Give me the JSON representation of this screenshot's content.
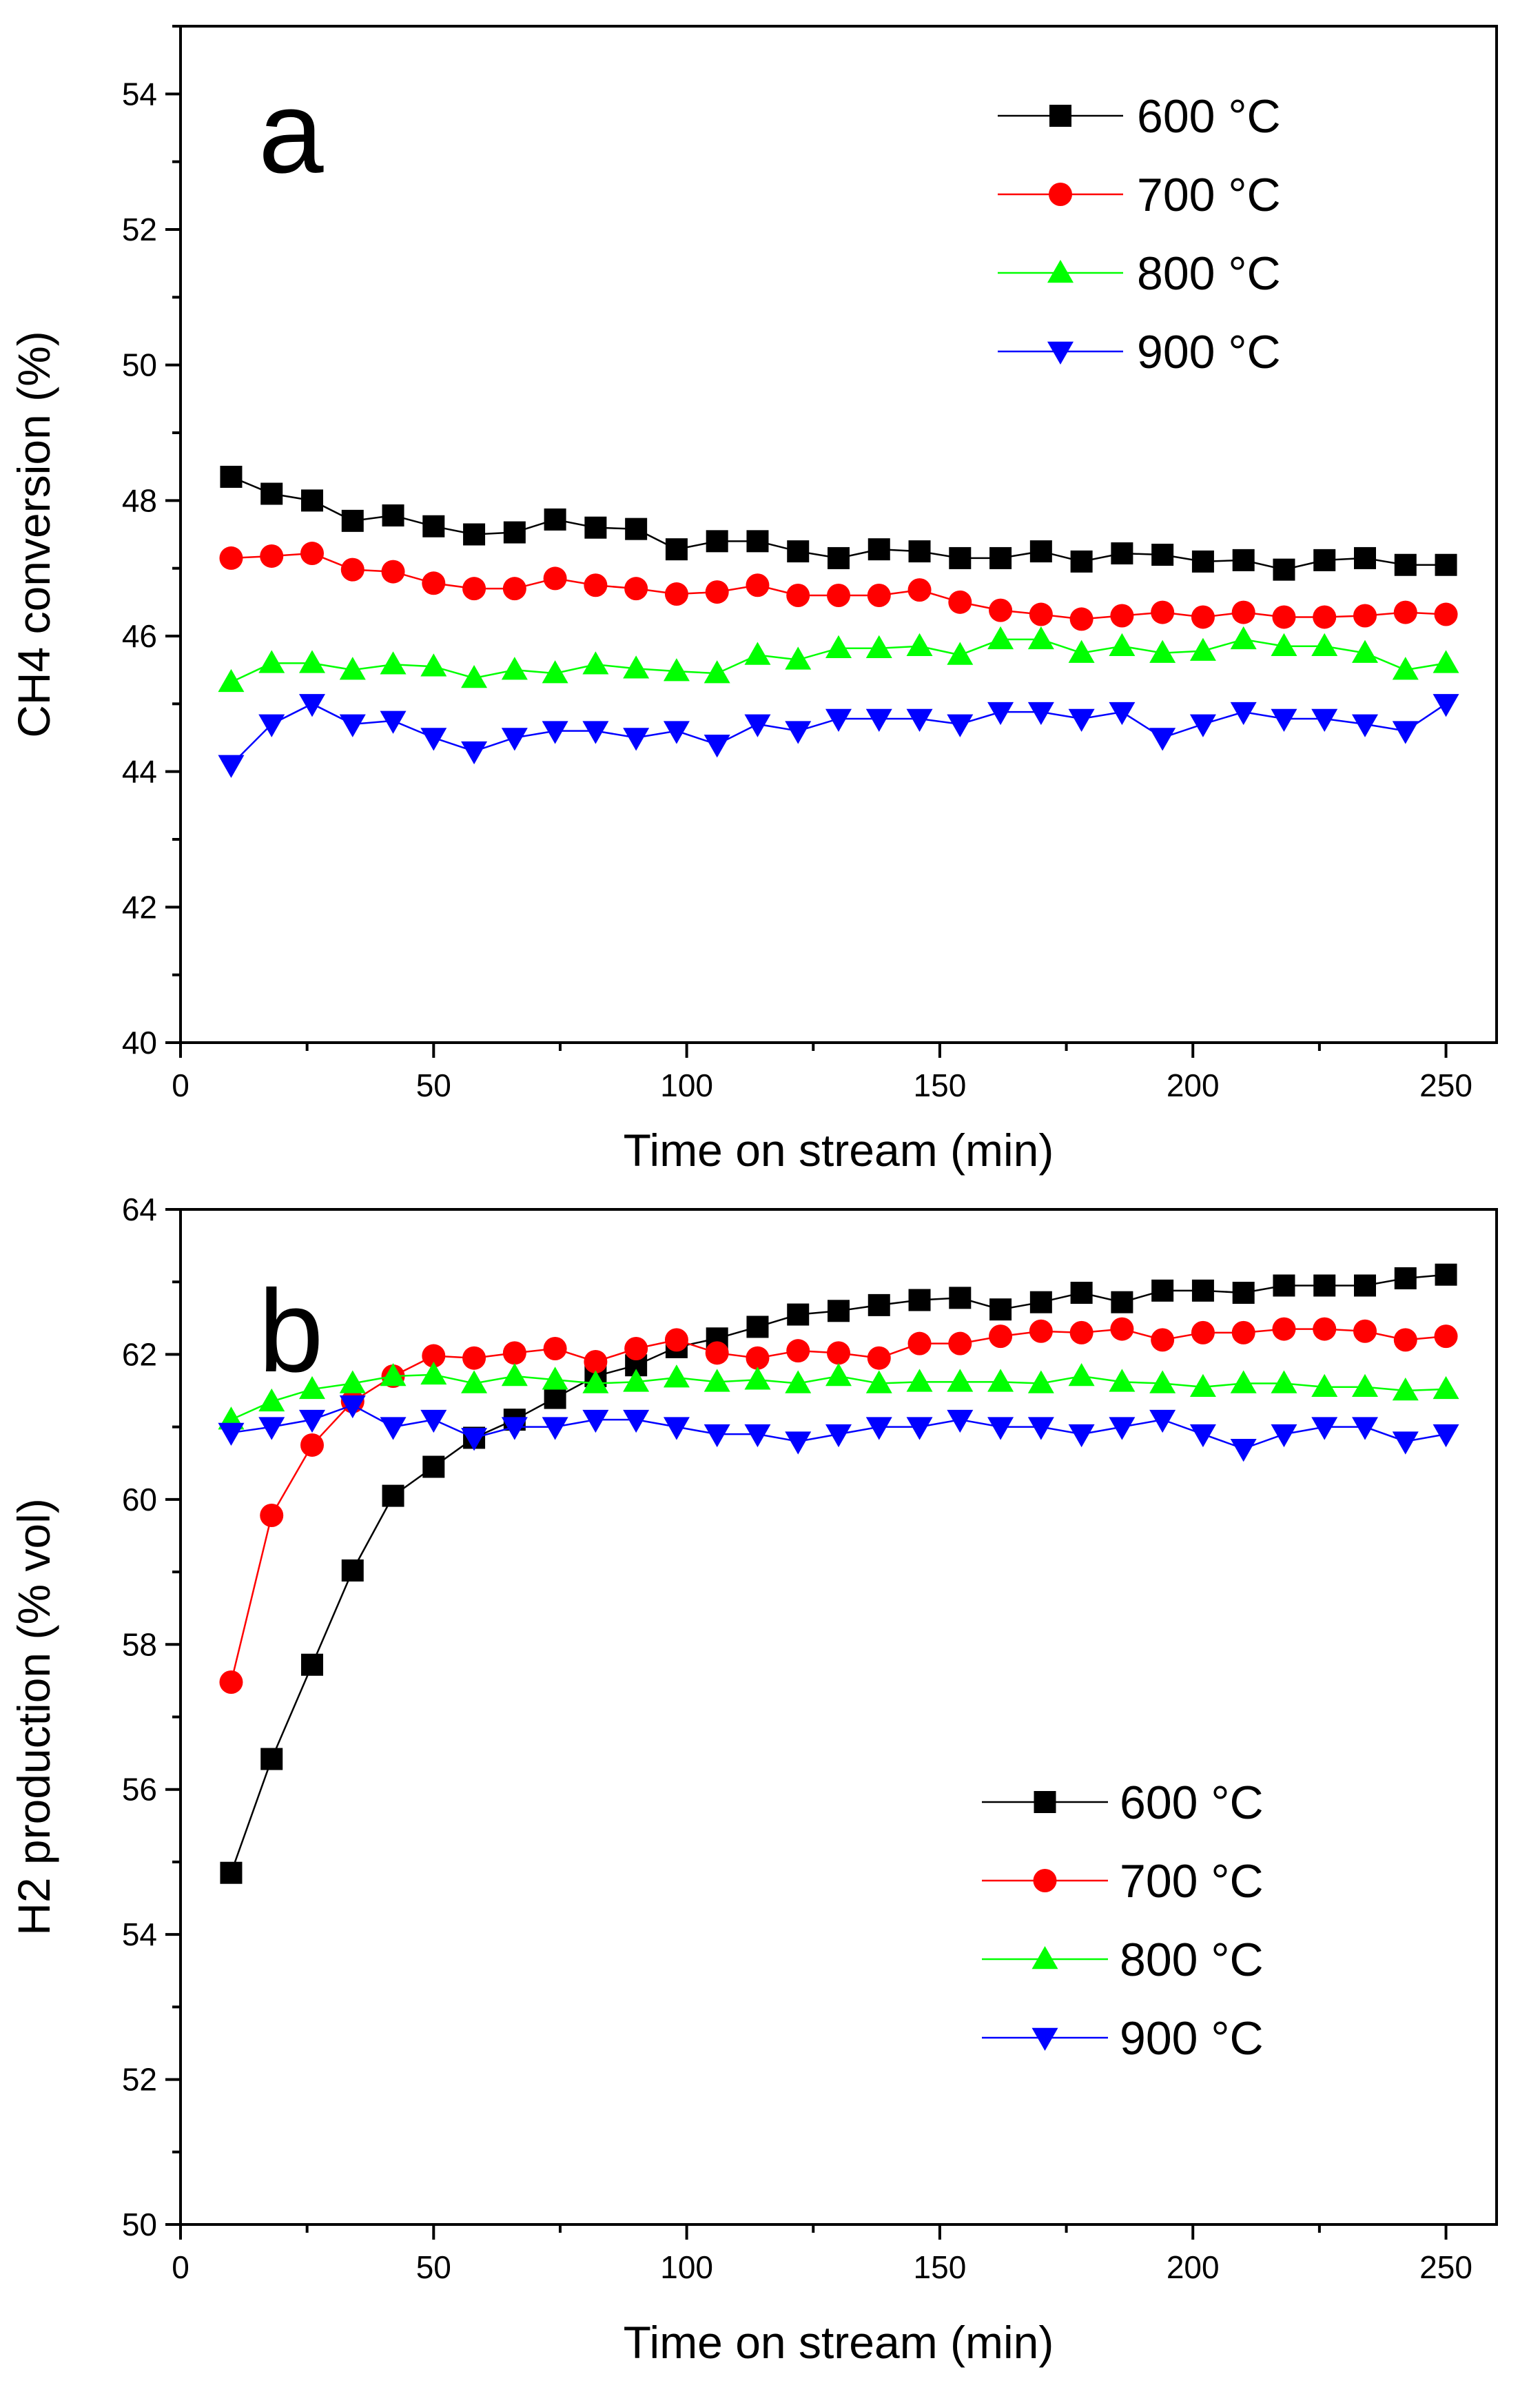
{
  "chart_data": [
    {
      "type": "line",
      "panel_label": "a",
      "xlabel": "Time on stream (min)",
      "ylabel": "CH4 conversion (%)",
      "xlim": [
        0,
        260
      ],
      "ylim": [
        40,
        55
      ],
      "xticks": [
        "0",
        "50",
        "100",
        "150",
        "200",
        "250"
      ],
      "yticks": [
        "40",
        "42",
        "44",
        "46",
        "48",
        "50",
        "52",
        "54"
      ],
      "legend_position": "top-right",
      "x": [
        10,
        18,
        26,
        34,
        42,
        50,
        58,
        66,
        74,
        82,
        90,
        98,
        106,
        114,
        122,
        130,
        138,
        146,
        154,
        162,
        170,
        178,
        186,
        194,
        202,
        210,
        218,
        226,
        234,
        242,
        250
      ],
      "series": [
        {
          "name": "600 °C",
          "color": "#000000",
          "marker": "square",
          "values": [
            48.35,
            48.1,
            48.0,
            47.7,
            47.78,
            47.62,
            47.5,
            47.53,
            47.72,
            47.6,
            47.58,
            47.28,
            47.4,
            47.4,
            47.25,
            47.15,
            47.28,
            47.25,
            47.15,
            47.15,
            47.25,
            47.1,
            47.22,
            47.2,
            47.1,
            47.12,
            46.98,
            47.12,
            47.15,
            47.05,
            47.05
          ]
        },
        {
          "name": "700 °C",
          "color": "#ff0000",
          "marker": "circle",
          "values": [
            47.15,
            47.18,
            47.22,
            46.98,
            46.95,
            46.78,
            46.7,
            46.7,
            46.85,
            46.75,
            46.7,
            46.62,
            46.65,
            46.75,
            46.6,
            46.6,
            46.6,
            46.68,
            46.5,
            46.38,
            46.32,
            46.25,
            46.3,
            46.35,
            46.28,
            46.35,
            46.28,
            46.28,
            46.3,
            46.35,
            46.32
          ]
        },
        {
          "name": "800 °C",
          "color": "#00ff00",
          "marker": "triangle-up",
          "values": [
            45.32,
            45.6,
            45.6,
            45.5,
            45.58,
            45.55,
            45.38,
            45.5,
            45.45,
            45.58,
            45.52,
            45.48,
            45.45,
            45.72,
            45.65,
            45.82,
            45.82,
            45.85,
            45.72,
            45.95,
            45.95,
            45.75,
            45.85,
            45.75,
            45.78,
            45.95,
            45.85,
            45.85,
            45.75,
            45.5,
            45.6
          ]
        },
        {
          "name": "900 °C",
          "color": "#0000ff",
          "marker": "triangle-down",
          "values": [
            44.1,
            44.7,
            45.0,
            44.7,
            44.75,
            44.5,
            44.3,
            44.5,
            44.6,
            44.6,
            44.5,
            44.6,
            44.4,
            44.7,
            44.6,
            44.78,
            44.78,
            44.78,
            44.7,
            44.88,
            44.88,
            44.78,
            44.88,
            44.5,
            44.7,
            44.88,
            44.78,
            44.78,
            44.7,
            44.6,
            45.0
          ]
        }
      ]
    },
    {
      "type": "line",
      "panel_label": "b",
      "xlabel": "Time on stream (min)",
      "ylabel": "H2 production (% vol)",
      "xlim": [
        0,
        260
      ],
      "ylim": [
        50,
        64
      ],
      "xticks": [
        "0",
        "50",
        "100",
        "150",
        "200",
        "250"
      ],
      "yticks": [
        "50",
        "52",
        "54",
        "56",
        "58",
        "60",
        "62",
        "64"
      ],
      "legend_position": "bottom-right",
      "x": [
        10,
        18,
        26,
        34,
        42,
        50,
        58,
        66,
        74,
        82,
        90,
        98,
        106,
        114,
        122,
        130,
        138,
        146,
        154,
        162,
        170,
        178,
        186,
        194,
        202,
        210,
        218,
        226,
        234,
        242,
        250
      ],
      "series": [
        {
          "name": "600 °C",
          "color": "#000000",
          "marker": "square",
          "values": [
            54.85,
            56.42,
            57.72,
            59.02,
            60.05,
            60.45,
            60.85,
            61.1,
            61.4,
            61.7,
            61.85,
            62.1,
            62.22,
            62.38,
            62.55,
            62.6,
            62.68,
            62.75,
            62.78,
            62.62,
            62.72,
            62.85,
            62.72,
            62.88,
            62.88,
            62.85,
            62.95,
            62.95,
            62.95,
            63.05,
            63.1
          ]
        },
        {
          "name": "700 °C",
          "color": "#ff0000",
          "marker": "circle",
          "values": [
            57.48,
            59.78,
            60.75,
            61.35,
            61.7,
            61.98,
            61.95,
            62.02,
            62.08,
            61.9,
            62.08,
            62.2,
            62.02,
            61.95,
            62.05,
            62.02,
            61.95,
            62.15,
            62.15,
            62.25,
            62.32,
            62.3,
            62.35,
            62.2,
            62.3,
            62.3,
            62.35,
            62.35,
            62.32,
            62.2,
            62.25
          ]
        },
        {
          "name": "800 °C",
          "color": "#00ff00",
          "marker": "triangle-up",
          "values": [
            61.1,
            61.35,
            61.52,
            61.6,
            61.7,
            61.72,
            61.6,
            61.7,
            61.65,
            61.6,
            61.62,
            61.68,
            61.62,
            61.65,
            61.6,
            61.7,
            61.6,
            61.62,
            61.62,
            61.62,
            61.6,
            61.7,
            61.62,
            61.6,
            61.55,
            61.6,
            61.6,
            61.55,
            61.55,
            61.5,
            61.52
          ]
        },
        {
          "name": "900 °C",
          "color": "#0000ff",
          "marker": "triangle-down",
          "values": [
            60.92,
            61.0,
            61.1,
            61.3,
            61.0,
            61.1,
            60.85,
            61.0,
            61.0,
            61.1,
            61.1,
            61.0,
            60.9,
            60.9,
            60.8,
            60.9,
            61.0,
            61.0,
            61.1,
            61.0,
            61.0,
            60.9,
            61.0,
            61.1,
            60.9,
            60.7,
            60.9,
            61.0,
            61.0,
            60.8,
            60.9
          ]
        }
      ]
    }
  ]
}
